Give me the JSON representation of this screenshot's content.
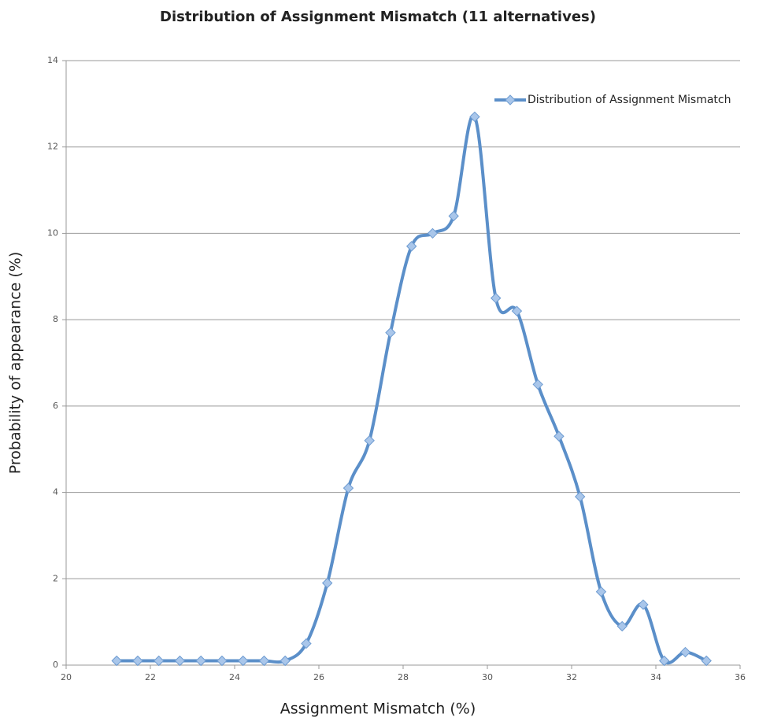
{
  "chart_data": {
    "type": "line",
    "title": "Distribution of Assignment Mismatch (11 alternatives)",
    "xlabel": "Assignment Mismatch (%)",
    "ylabel": "Probability of appearance (%)",
    "x": [
      21.2,
      21.7,
      22.2,
      22.7,
      23.2,
      23.7,
      24.2,
      24.7,
      25.2,
      25.7,
      26.2,
      26.7,
      27.2,
      27.7,
      28.2,
      28.7,
      29.2,
      29.7,
      30.2,
      30.7,
      31.2,
      31.7,
      32.2,
      32.7,
      33.2,
      33.7,
      34.2,
      34.7,
      35.2
    ],
    "series": [
      {
        "name": "Distribution of Assignment Mismatch",
        "color": "#5b8fc9",
        "values": [
          0.1,
          0.1,
          0.1,
          0.1,
          0.1,
          0.1,
          0.1,
          0.1,
          0.1,
          0.5,
          1.9,
          4.1,
          5.2,
          7.7,
          9.7,
          10.0,
          10.4,
          12.7,
          8.5,
          8.2,
          6.5,
          5.3,
          3.9,
          1.7,
          0.9,
          1.4,
          0.1,
          0.3,
          0.1
        ]
      }
    ],
    "xlim": [
      20,
      36
    ],
    "xticks": [
      20,
      22,
      24,
      26,
      28,
      30,
      32,
      34,
      36
    ],
    "ylim": [
      0,
      14
    ],
    "yticks": [
      0,
      2,
      4,
      6,
      8,
      10,
      12,
      14
    ],
    "grid": true,
    "smooth": true,
    "legend": "upper right"
  }
}
